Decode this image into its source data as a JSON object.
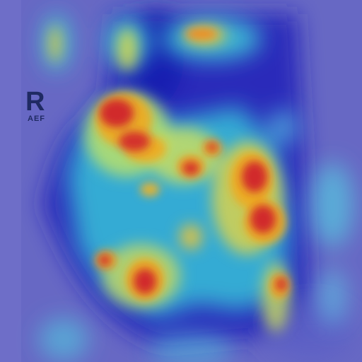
{
  "image": {
    "kind": "x-ray-with-heatmap-overlay",
    "colors": {
      "background": "#6f6fc9",
      "low": "#1d22b8",
      "mid_low": "#37c2d8",
      "mid": "#b8e06a",
      "mid_high": "#f0c21f",
      "high": "#d0242c"
    }
  },
  "marker": {
    "side_label": "R",
    "sub_label": "AEF"
  }
}
